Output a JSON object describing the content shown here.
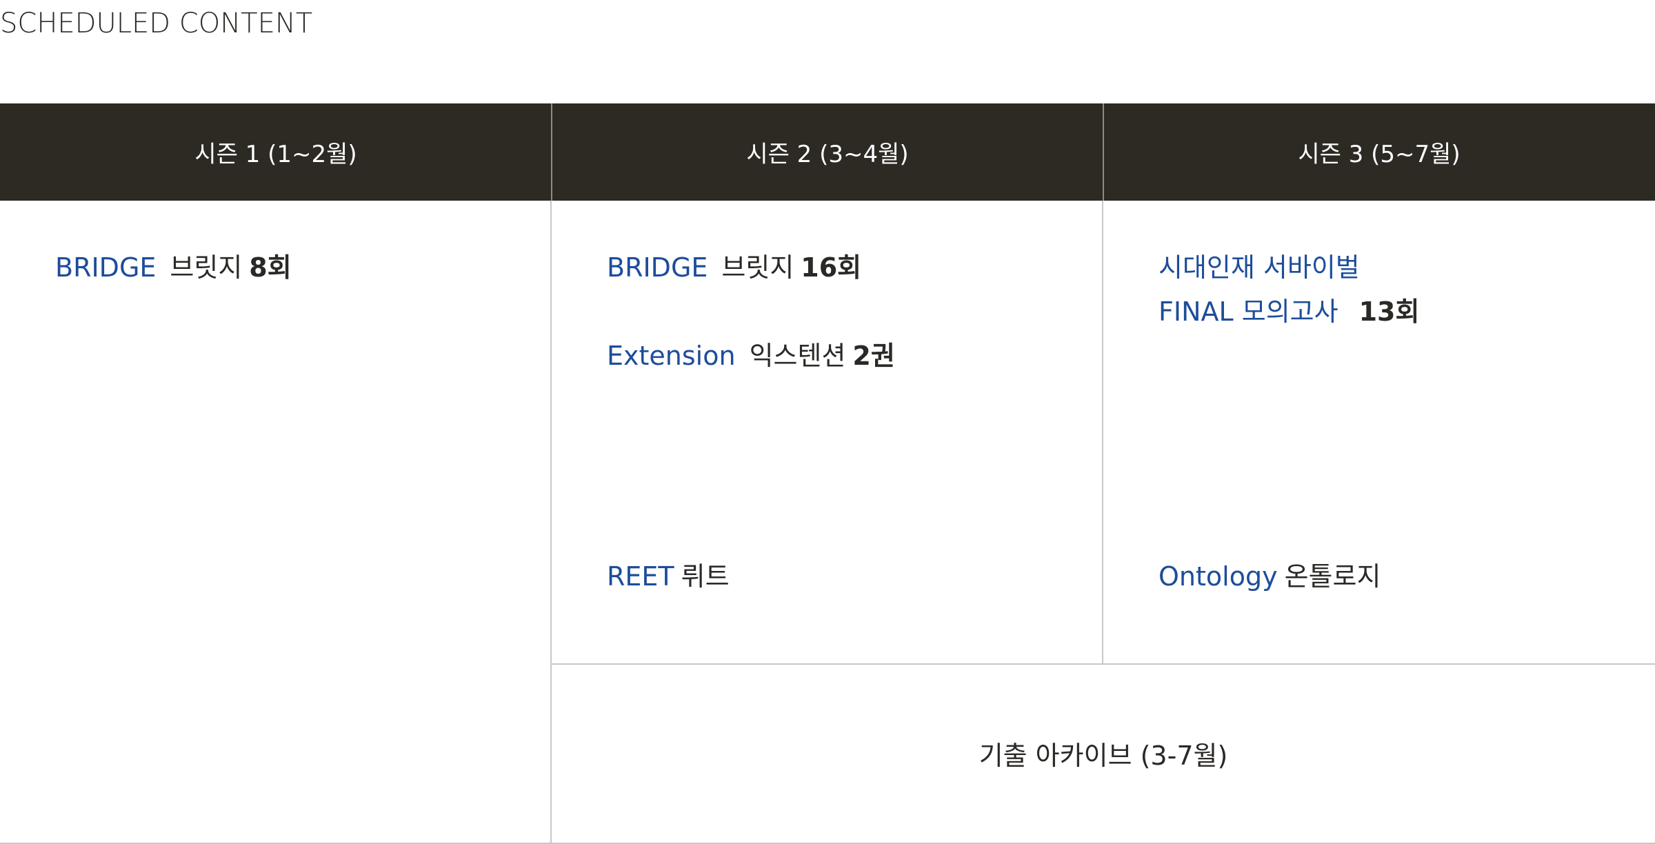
{
  "page": {
    "section_title": "SCHEDULED CONTENT"
  },
  "seasons": [
    {
      "label": "시즌 1 (1~2월)"
    },
    {
      "label": "시즌 2 (3~4월)"
    },
    {
      "label": "시즌 3 (5~7월)"
    }
  ],
  "season1": {
    "bridge": {
      "en": "BRIDGE",
      "ko": "브릿지",
      "count": "8회"
    }
  },
  "season2": {
    "bridge": {
      "en": "BRIDGE",
      "ko": "브릿지",
      "count": "16회"
    },
    "extension": {
      "en": "Extension",
      "ko": "익스텐션",
      "count": "2권"
    },
    "reet": {
      "en": "REET",
      "ko": "뤼트"
    }
  },
  "season3": {
    "survival": {
      "line1": "시대인재 서바이벌",
      "line2": "FINAL 모의고사",
      "count": "13회"
    },
    "ontology": {
      "en": "Ontology",
      "ko": "온톨로지"
    }
  },
  "archive": {
    "label": "기출 아카이브 (3-7월)"
  },
  "colors": {
    "header_bg": "#2d2a24",
    "header_text": "#ffffff",
    "accent_blue": "#1d4d9b",
    "body_text": "#2b2926",
    "grid_line": "#c8c8c8"
  }
}
